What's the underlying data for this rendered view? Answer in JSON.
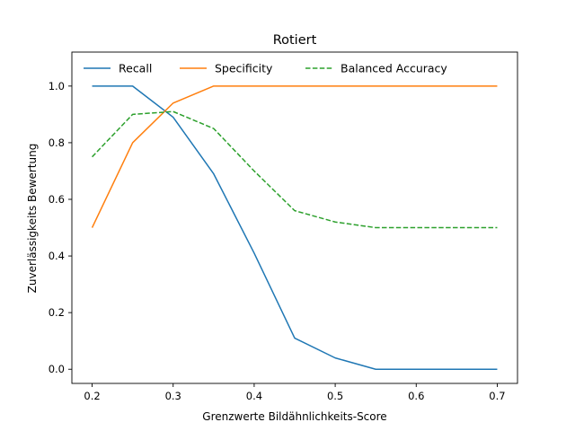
{
  "chart_data": {
    "type": "line",
    "title": "Rotiert",
    "xlabel": "Grenzwerte Bildähnlichkeits-Score",
    "ylabel": "Zuverlässigkeits Bewertung",
    "x": [
      0.2,
      0.25,
      0.3,
      0.35,
      0.4,
      0.45,
      0.5,
      0.55,
      0.6,
      0.65,
      0.7
    ],
    "xlim": [
      0.175,
      0.725
    ],
    "ylim": [
      -0.05,
      1.12
    ],
    "xticks": [
      0.2,
      0.3,
      0.4,
      0.5,
      0.6,
      0.7
    ],
    "xtick_labels": [
      "0.2",
      "0.3",
      "0.4",
      "0.5",
      "0.6",
      "0.7"
    ],
    "yticks": [
      0.0,
      0.2,
      0.4,
      0.6,
      0.8,
      1.0
    ],
    "ytick_labels": [
      "0.0",
      "0.2",
      "0.4",
      "0.6",
      "0.8",
      "1.0"
    ],
    "grid": false,
    "legend_position": "top",
    "series": [
      {
        "name": "Recall",
        "color": "#1f77b4",
        "dash": "solid",
        "values": [
          1.0,
          1.0,
          0.89,
          0.69,
          0.41,
          0.11,
          0.04,
          0.0,
          0.0,
          0.0,
          0.0
        ]
      },
      {
        "name": "Specificity",
        "color": "#ff7f0e",
        "dash": "solid",
        "values": [
          0.5,
          0.8,
          0.94,
          1.0,
          1.0,
          1.0,
          1.0,
          1.0,
          1.0,
          1.0,
          1.0
        ]
      },
      {
        "name": "Balanced Accuracy",
        "color": "#2ca02c",
        "dash": "dashed",
        "values": [
          0.75,
          0.9,
          0.91,
          0.85,
          0.7,
          0.56,
          0.52,
          0.5,
          0.5,
          0.5,
          0.5
        ]
      }
    ]
  }
}
